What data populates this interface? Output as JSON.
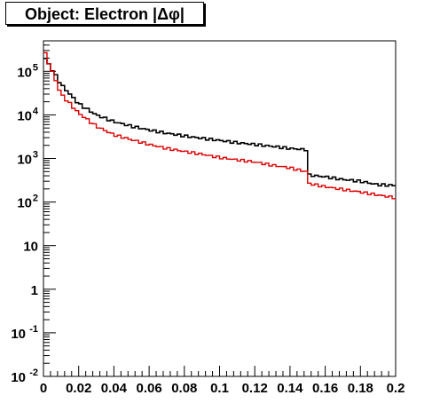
{
  "chart_data": {
    "type": "line",
    "title": "Object: Electron |Δφ|",
    "xlabel": "",
    "ylabel": "",
    "yscale": "log",
    "xlim": [
      0,
      0.2
    ],
    "ylim": [
      0.01,
      500000
    ],
    "grid": false,
    "x_ticks": [
      "0",
      "0.02",
      "0.04",
      "0.06",
      "0.08",
      "0.1",
      "0.12",
      "0.14",
      "0.16",
      "0.18",
      "0.2"
    ],
    "y_ticks": [
      {
        "value": 0.01,
        "label": "10",
        "exp": "-2"
      },
      {
        "value": 0.1,
        "label": "10",
        "exp": "-1"
      },
      {
        "value": 1,
        "label": "1",
        "exp": ""
      },
      {
        "value": 10,
        "label": "10",
        "exp": ""
      },
      {
        "value": 100,
        "label": "10",
        "exp": "2"
      },
      {
        "value": 1000,
        "label": "10",
        "exp": "3"
      },
      {
        "value": 10000,
        "label": "10",
        "exp": "4"
      },
      {
        "value": 100000,
        "label": "10",
        "exp": "5"
      }
    ],
    "bin_width": 0.002,
    "series": [
      {
        "color": "#000000",
        "x": [
          0,
          0.01,
          0.02,
          0.03,
          0.04,
          0.05,
          0.06,
          0.07,
          0.08,
          0.09,
          0.1,
          0.11,
          0.12,
          0.13,
          0.14,
          0.148,
          0.15,
          0.16,
          0.17,
          0.18,
          0.19,
          0.2
        ],
        "y": [
          230000,
          50000,
          18000,
          10000,
          7000,
          5500,
          4500,
          3800,
          3300,
          2900,
          2600,
          2300,
          2100,
          1900,
          1700,
          1600,
          420,
          380,
          330,
          300,
          250,
          240
        ]
      },
      {
        "color": "#dd0000",
        "x": [
          0,
          0.01,
          0.02,
          0.03,
          0.04,
          0.05,
          0.06,
          0.07,
          0.08,
          0.09,
          0.1,
          0.11,
          0.12,
          0.13,
          0.14,
          0.148,
          0.15,
          0.16,
          0.17,
          0.18,
          0.19,
          0.2
        ],
        "y": [
          320000,
          30000,
          11000,
          5500,
          3500,
          2700,
          2100,
          1700,
          1450,
          1250,
          1050,
          930,
          830,
          700,
          610,
          510,
          270,
          225,
          195,
          170,
          145,
          125
        ]
      }
    ]
  }
}
